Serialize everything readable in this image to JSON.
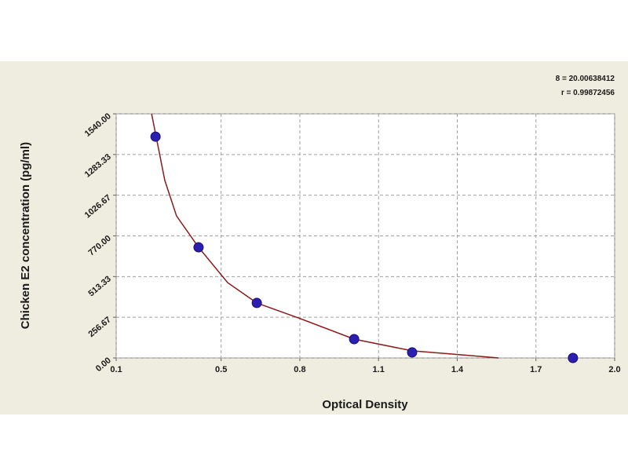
{
  "chart_data": {
    "type": "scatter",
    "xlabel": "Optical Density",
    "ylabel": "Chicken E2 concentration (pg/ml)",
    "annotations": [
      "8 = 20.00638412",
      "r = 0.99872456"
    ],
    "xlim": [
      0.1,
      2.0
    ],
    "ylim": [
      0,
      1540
    ],
    "xticks": [
      0.1,
      0.5,
      0.8,
      1.1,
      1.4,
      1.7,
      {
        "value": 2,
        "label": "2.0"
      }
    ],
    "yticks": [
      {
        "value": 0,
        "label": "0.00"
      },
      256.67,
      513.33,
      {
        "value": 770,
        "label": "770.00"
      },
      1026.67,
      1283.33,
      {
        "value": 1540,
        "label": "1540.00"
      }
    ],
    "grid": true,
    "series": [
      {
        "color": "#2a1fb0",
        "x": [
          0.25,
          0.414,
          0.636,
          1.007,
          1.228,
          1.841
        ],
        "values": [
          1396,
          698,
          347,
          119,
          35,
          0
        ]
      }
    ],
    "curve": {
      "color": "#8b1a1a",
      "x": [
        0.235,
        0.2855,
        0.33,
        0.414,
        0.525,
        0.636,
        0.794,
        1.007,
        1.228,
        1.452,
        1.557
      ],
      "values": [
        1540,
        1119,
        896,
        698,
        475,
        347,
        253,
        119,
        45,
        15,
        0
      ]
    }
  }
}
